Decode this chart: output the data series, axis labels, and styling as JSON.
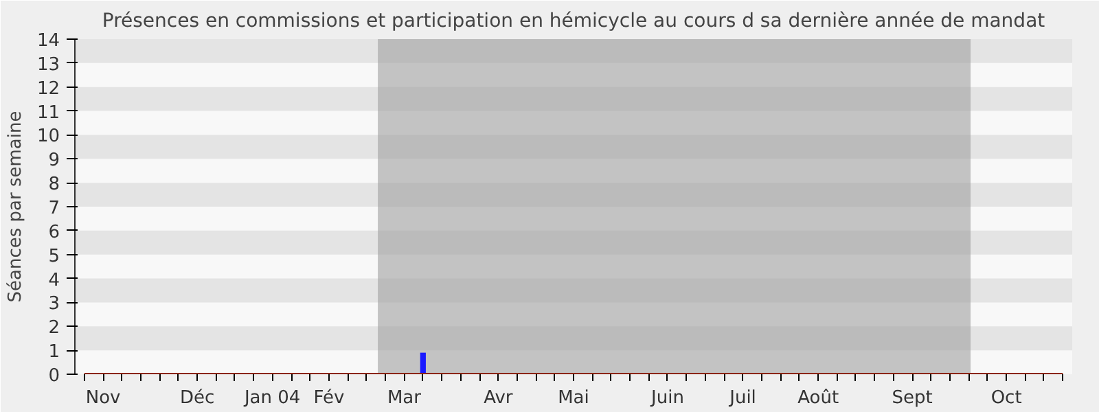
{
  "chart_data": {
    "type": "bar",
    "title": "Présences en commissions et participation en hémicycle au cours d sa dernière année de mandat",
    "ylabel": "Séances par semaine",
    "categories": [
      null,
      "Nov",
      null,
      null,
      null,
      null,
      "Déc",
      null,
      null,
      null,
      "Jan 04",
      null,
      null,
      "Fév",
      null,
      null,
      null,
      "Mar",
      null,
      null,
      null,
      null,
      "Avr",
      null,
      null,
      null,
      "Mai",
      null,
      null,
      null,
      null,
      "Juin",
      null,
      null,
      null,
      "Juil",
      null,
      null,
      null,
      "Août",
      null,
      null,
      null,
      null,
      "Sept",
      null,
      null,
      null,
      null,
      "Oct",
      null,
      null,
      null
    ],
    "series": [
      {
        "color": "#1a1aff",
        "values": [
          0,
          0,
          0,
          0,
          0,
          0,
          0,
          0,
          0,
          0,
          0,
          0,
          0,
          0,
          0,
          0,
          0,
          0,
          0.9,
          0,
          0,
          0,
          0,
          0,
          0,
          0,
          0,
          0,
          0,
          0,
          0,
          0,
          0,
          0,
          0,
          0,
          0,
          0,
          0,
          0,
          0,
          0,
          0,
          0,
          0,
          0,
          0,
          0,
          0,
          0,
          0,
          0,
          0
        ]
      },
      {
        "type": "line",
        "color": "#8b2500",
        "values": [
          0,
          0,
          0,
          0,
          0,
          0,
          0,
          0,
          0,
          0,
          0,
          0,
          0,
          0,
          0,
          0,
          0,
          0,
          0,
          0,
          0,
          0,
          0,
          0,
          0,
          0,
          0,
          0,
          0,
          0,
          0,
          0,
          0,
          0,
          0,
          0,
          0,
          0,
          0,
          0,
          0,
          0,
          0,
          0,
          0,
          0,
          0,
          0,
          0,
          0,
          0,
          0,
          0
        ]
      }
    ],
    "ylim": [
      0,
      14
    ],
    "yticks": [
      0,
      1,
      2,
      3,
      4,
      5,
      6,
      7,
      8,
      9,
      10,
      11,
      12,
      13,
      14
    ]
  }
}
